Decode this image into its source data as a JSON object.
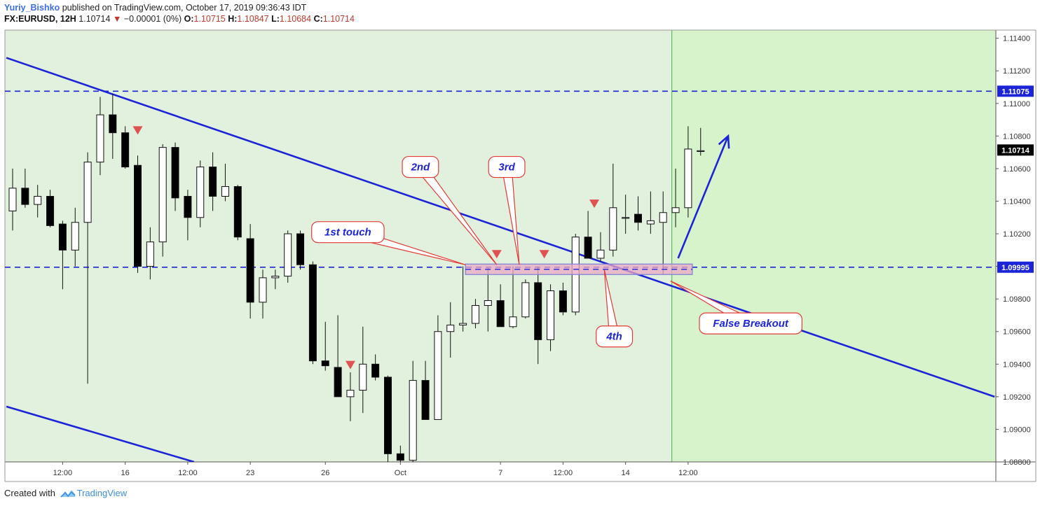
{
  "header": {
    "author": "Yuriy_Bishko",
    "published": "published on TradingView.com, October 17, 2019 09:36:43 IDT",
    "symbol": "FX:EURUSD, 12H",
    "last": "1.10714",
    "change": "−0.00001 (0%)",
    "open_label": "O:",
    "open": "1.10715",
    "high_label": "H:",
    "high": "1.10847",
    "low_label": "L:",
    "low": "1.10684",
    "close_label": "C:",
    "close": "1.10714"
  },
  "footer": {
    "created_with": "Created with",
    "brand": "TradingView"
  },
  "colors": {
    "bg_zone": "#e1f1dd",
    "bg_zone_right": "#d6f3cc",
    "trendline": "#1c24d8",
    "level_line": "#1c24d8",
    "callout_text": "#1c24d8",
    "callout_border": "#e53935",
    "marker": "#e05252",
    "zone_fill": "#e9a8c3",
    "zone_border": "#7b7fd8",
    "price_badge": "#000000"
  },
  "chart_data": {
    "type": "candlestick",
    "symbol": "FX:EURUSD",
    "timeframe": "12H",
    "ylim": [
      1.088,
      1.1145
    ],
    "y_ticks": [
      1.088,
      1.09,
      1.092,
      1.094,
      1.096,
      1.098,
      1.1,
      1.102,
      1.104,
      1.106,
      1.108,
      1.11,
      1.112,
      1.114
    ],
    "y_tick_labels": [
      "1.08800",
      "1.09000",
      "1.09200",
      "1.09400",
      "1.09600",
      "1.09800",
      "1.10000",
      "1.10200",
      "1.10400",
      "1.10600",
      "1.10800",
      "1.11000",
      "1.11200",
      "1.11400"
    ],
    "x_labels": [
      {
        "i": 4,
        "label": "12:00"
      },
      {
        "i": 9,
        "label": "16"
      },
      {
        "i": 14,
        "label": "12:00"
      },
      {
        "i": 19,
        "label": "23"
      },
      {
        "i": 25,
        "label": "26"
      },
      {
        "i": 31,
        "label": "Oct"
      },
      {
        "i": 39,
        "label": "7"
      },
      {
        "i": 44,
        "label": "12:00"
      },
      {
        "i": 49,
        "label": "14"
      },
      {
        "i": 54,
        "label": "12:00"
      }
    ],
    "candles": [
      {
        "o": 1.1034,
        "h": 1.106,
        "l": 1.1022,
        "c": 1.1048
      },
      {
        "o": 1.1048,
        "h": 1.106,
        "l": 1.1036,
        "c": 1.1038
      },
      {
        "o": 1.1038,
        "h": 1.105,
        "l": 1.103,
        "c": 1.1043
      },
      {
        "o": 1.1043,
        "h": 1.1047,
        "l": 1.1024,
        "c": 1.1025
      },
      {
        "o": 1.1026,
        "h": 1.1028,
        "l": 1.0986,
        "c": 1.101
      },
      {
        "o": 1.101,
        "h": 1.1036,
        "l": 1.1,
        "c": 1.1027
      },
      {
        "o": 1.1027,
        "h": 1.107,
        "l": 1.0928,
        "c": 1.1064
      },
      {
        "o": 1.1064,
        "h": 1.1104,
        "l": 1.1056,
        "c": 1.1093
      },
      {
        "o": 1.1093,
        "h": 1.1106,
        "l": 1.1066,
        "c": 1.1082
      },
      {
        "o": 1.1082,
        "h": 1.1086,
        "l": 1.106,
        "c": 1.1061
      },
      {
        "o": 1.1062,
        "h": 1.1068,
        "l": 1.0996,
        "c": 1.1
      },
      {
        "o": 1.1,
        "h": 1.1024,
        "l": 1.0992,
        "c": 1.1015
      },
      {
        "o": 1.1015,
        "h": 1.1075,
        "l": 1.1006,
        "c": 1.1073
      },
      {
        "o": 1.1073,
        "h": 1.1076,
        "l": 1.1034,
        "c": 1.1042
      },
      {
        "o": 1.1043,
        "h": 1.1047,
        "l": 1.1016,
        "c": 1.103
      },
      {
        "o": 1.103,
        "h": 1.1065,
        "l": 1.1024,
        "c": 1.1061
      },
      {
        "o": 1.1061,
        "h": 1.107,
        "l": 1.1034,
        "c": 1.1043
      },
      {
        "o": 1.1043,
        "h": 1.1063,
        "l": 1.104,
        "c": 1.1049
      },
      {
        "o": 1.1049,
        "h": 1.105,
        "l": 1.1016,
        "c": 1.1018
      },
      {
        "o": 1.1017,
        "h": 1.1026,
        "l": 1.0968,
        "c": 1.0978
      },
      {
        "o": 1.0978,
        "h": 1.0998,
        "l": 1.0968,
        "c": 1.0993
      },
      {
        "o": 1.0993,
        "h": 1.0998,
        "l": 1.0986,
        "c": 1.0994
      },
      {
        "o": 1.0994,
        "h": 1.1022,
        "l": 1.099,
        "c": 1.102
      },
      {
        "o": 1.102,
        "h": 1.1022,
        "l": 1.0998,
        "c": 1.1001
      },
      {
        "o": 1.1001,
        "h": 1.1003,
        "l": 1.094,
        "c": 1.0942
      },
      {
        "o": 1.0942,
        "h": 1.0966,
        "l": 1.0936,
        "c": 1.0939
      },
      {
        "o": 1.0938,
        "h": 1.097,
        "l": 1.092,
        "c": 1.092
      },
      {
        "o": 1.092,
        "h": 1.0935,
        "l": 1.0905,
        "c": 1.0924
      },
      {
        "o": 1.0924,
        "h": 1.0963,
        "l": 1.091,
        "c": 1.094
      },
      {
        "o": 1.094,
        "h": 1.0946,
        "l": 1.093,
        "c": 1.0932
      },
      {
        "o": 1.0932,
        "h": 1.0933,
        "l": 1.088,
        "c": 1.0885
      },
      {
        "o": 1.0885,
        "h": 1.089,
        "l": 1.0877,
        "c": 1.0881
      },
      {
        "o": 1.0881,
        "h": 1.0942,
        "l": 1.0874,
        "c": 1.093
      },
      {
        "o": 1.093,
        "h": 1.0942,
        "l": 1.0906,
        "c": 1.0906
      },
      {
        "o": 1.0906,
        "h": 1.097,
        "l": 1.0906,
        "c": 1.096
      },
      {
        "o": 1.096,
        "h": 1.0978,
        "l": 1.0944,
        "c": 1.0964
      },
      {
        "o": 1.0964,
        "h": 1.1,
        "l": 1.096,
        "c": 1.0965
      },
      {
        "o": 1.0965,
        "h": 1.098,
        "l": 1.0962,
        "c": 1.0976
      },
      {
        "o": 1.0976,
        "h": 1.0999,
        "l": 1.096,
        "c": 1.0979
      },
      {
        "o": 1.0979,
        "h": 1.0989,
        "l": 1.0964,
        "c": 1.0963
      },
      {
        "o": 1.0963,
        "h": 1.1,
        "l": 1.0962,
        "c": 1.0969
      },
      {
        "o": 1.0969,
        "h": 1.0992,
        "l": 1.0968,
        "c": 1.099
      },
      {
        "o": 1.099,
        "h": 1.1,
        "l": 1.094,
        "c": 1.0955
      },
      {
        "o": 1.0955,
        "h": 1.0989,
        "l": 1.0948,
        "c": 1.0985
      },
      {
        "o": 1.0985,
        "h": 1.099,
        "l": 1.097,
        "c": 1.0972
      },
      {
        "o": 1.0972,
        "h": 1.102,
        "l": 1.097,
        "c": 1.1018
      },
      {
        "o": 1.1018,
        "h": 1.1034,
        "l": 1.1005,
        "c": 1.1005
      },
      {
        "o": 1.1005,
        "h": 1.1021,
        "l": 1.1003,
        "c": 1.101
      },
      {
        "o": 1.101,
        "h": 1.1063,
        "l": 1.1006,
        "c": 1.1036
      },
      {
        "o": 1.103,
        "h": 1.1044,
        "l": 1.102,
        "c": 1.103
      },
      {
        "o": 1.1032,
        "h": 1.1043,
        "l": 1.1022,
        "c": 1.1027
      },
      {
        "o": 1.1026,
        "h": 1.1046,
        "l": 1.102,
        "c": 1.1028
      },
      {
        "o": 1.1027,
        "h": 1.1046,
        "l": 1.0995,
        "c": 1.1033
      },
      {
        "o": 1.1033,
        "h": 1.106,
        "l": 1.1024,
        "c": 1.1036
      },
      {
        "o": 1.1036,
        "h": 1.1086,
        "l": 1.103,
        "c": 1.1072
      },
      {
        "o": 1.1071,
        "h": 1.1085,
        "l": 1.1068,
        "c": 1.1071
      }
    ],
    "levels": [
      {
        "name": "resistance",
        "price": 1.11075,
        "label": "1.11075",
        "style": "dashed"
      },
      {
        "name": "support",
        "price": 1.09995,
        "label": "1.09995",
        "style": "dashed"
      }
    ],
    "current_price": {
      "price": 1.10714,
      "label": "1.10714"
    },
    "trendlines": [
      {
        "from": {
          "i": -0.5,
          "p": 1.1128
        },
        "to": {
          "i": 78.5,
          "p": 1.092
        }
      },
      {
        "from": {
          "i": -0.5,
          "p": 1.0914
        },
        "to": {
          "i": 14.5,
          "p": 1.088
        }
      }
    ],
    "support_zone": {
      "i_start": 36.2,
      "i_end": 54,
      "top": 1.1001,
      "bottom": 1.0998
    },
    "markers": [
      {
        "i": 10,
        "p": 1.1083
      },
      {
        "i": 27,
        "p": 1.0939
      },
      {
        "i": 38.7,
        "p": 1.1007
      },
      {
        "i": 42.5,
        "p": 1.1007
      },
      {
        "i": 46.5,
        "p": 1.1038
      }
    ],
    "divider_index": 52.7,
    "annotations": [
      {
        "text": "1st touch",
        "box_i": 26.8,
        "box_p": 1.1021,
        "target_i": 36.2,
        "target_p": 1.1001
      },
      {
        "text": "2nd",
        "box_i": 32.6,
        "box_p": 1.1061,
        "target_i": 38.7,
        "target_p": 1.1001
      },
      {
        "text": "3rd",
        "box_i": 39.5,
        "box_p": 1.1061,
        "target_i": 40.5,
        "target_p": 1.1001
      },
      {
        "text": "4th",
        "box_i": 48.1,
        "box_p": 1.0957,
        "target_i": 47.3,
        "target_p": 1.0998
      },
      {
        "text": "False Breakout",
        "box_i": 59,
        "box_p": 1.0965,
        "target_i": 52.6,
        "target_p": 1.0991
      }
    ],
    "arrow": {
      "from": {
        "i": 53.2,
        "p": 1.1005
      },
      "to": {
        "i": 57.2,
        "p": 1.108
      }
    }
  }
}
